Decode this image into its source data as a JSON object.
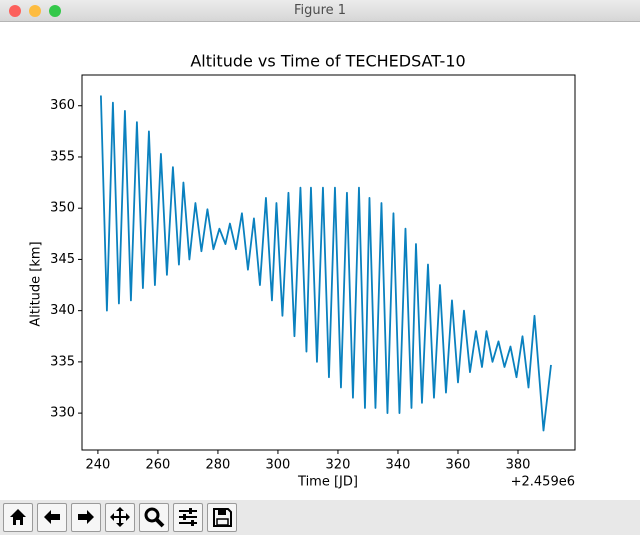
{
  "window": {
    "title": "Figure 1"
  },
  "chart_data": {
    "type": "line",
    "title": "Altitude vs Time of TECHEDSAT-10",
    "x_label": "Time [JD]",
    "y_label": "Altitude [km]",
    "x_offset_label": "+2.459e6",
    "color": "#0a81bf",
    "x": [
      241,
      243,
      245,
      247,
      249,
      251,
      253,
      255,
      257,
      259,
      261,
      263,
      265,
      267,
      268.5,
      270.5,
      272.5,
      274.5,
      276.5,
      278.5,
      280.5,
      282.5,
      284,
      286,
      288,
      290,
      292,
      294,
      296,
      298,
      299.5,
      301.5,
      303.5,
      305.5,
      307.5,
      309.5,
      311,
      313,
      315,
      317,
      319,
      321,
      323,
      325,
      327,
      329,
      330.5,
      332.5,
      334.5,
      336.5,
      338.5,
      340.5,
      342.5,
      344.5,
      346,
      348,
      350,
      352,
      354,
      356,
      358,
      360,
      362,
      364,
      366,
      368,
      369.5,
      371.5,
      373.5,
      375.5,
      377.5,
      379.5,
      381.5,
      383.5,
      385.5,
      388.5,
      391
    ],
    "values": [
      361,
      340,
      360.3,
      340.7,
      359.5,
      341,
      358.4,
      342.2,
      357.5,
      342.5,
      355.3,
      343.5,
      354,
      344.5,
      352.5,
      345,
      350.5,
      345.8,
      349.9,
      346,
      348,
      346.5,
      348.5,
      346,
      349.5,
      344,
      349,
      342.5,
      351,
      341,
      350.5,
      339.5,
      351.5,
      337.5,
      352,
      336,
      352,
      335,
      352,
      333.5,
      352,
      332.5,
      351.5,
      331.5,
      352,
      330.5,
      351,
      330.5,
      350.5,
      330,
      349.5,
      330,
      348,
      330.5,
      346.5,
      331,
      344.5,
      331.5,
      342.5,
      332,
      341,
      333,
      340,
      334,
      338,
      334.5,
      338,
      335,
      337,
      334.5,
      336.5,
      333.5,
      337.5,
      332.5,
      339.5,
      328.3,
      334.7
    ],
    "xlim": [
      234.7,
      399
    ],
    "ylim": [
      363,
      326.4
    ],
    "xticks": [
      240,
      260,
      280,
      300,
      320,
      340,
      360,
      380
    ],
    "yticks": [
      330,
      335,
      340,
      345,
      350,
      355,
      360
    ]
  }
}
